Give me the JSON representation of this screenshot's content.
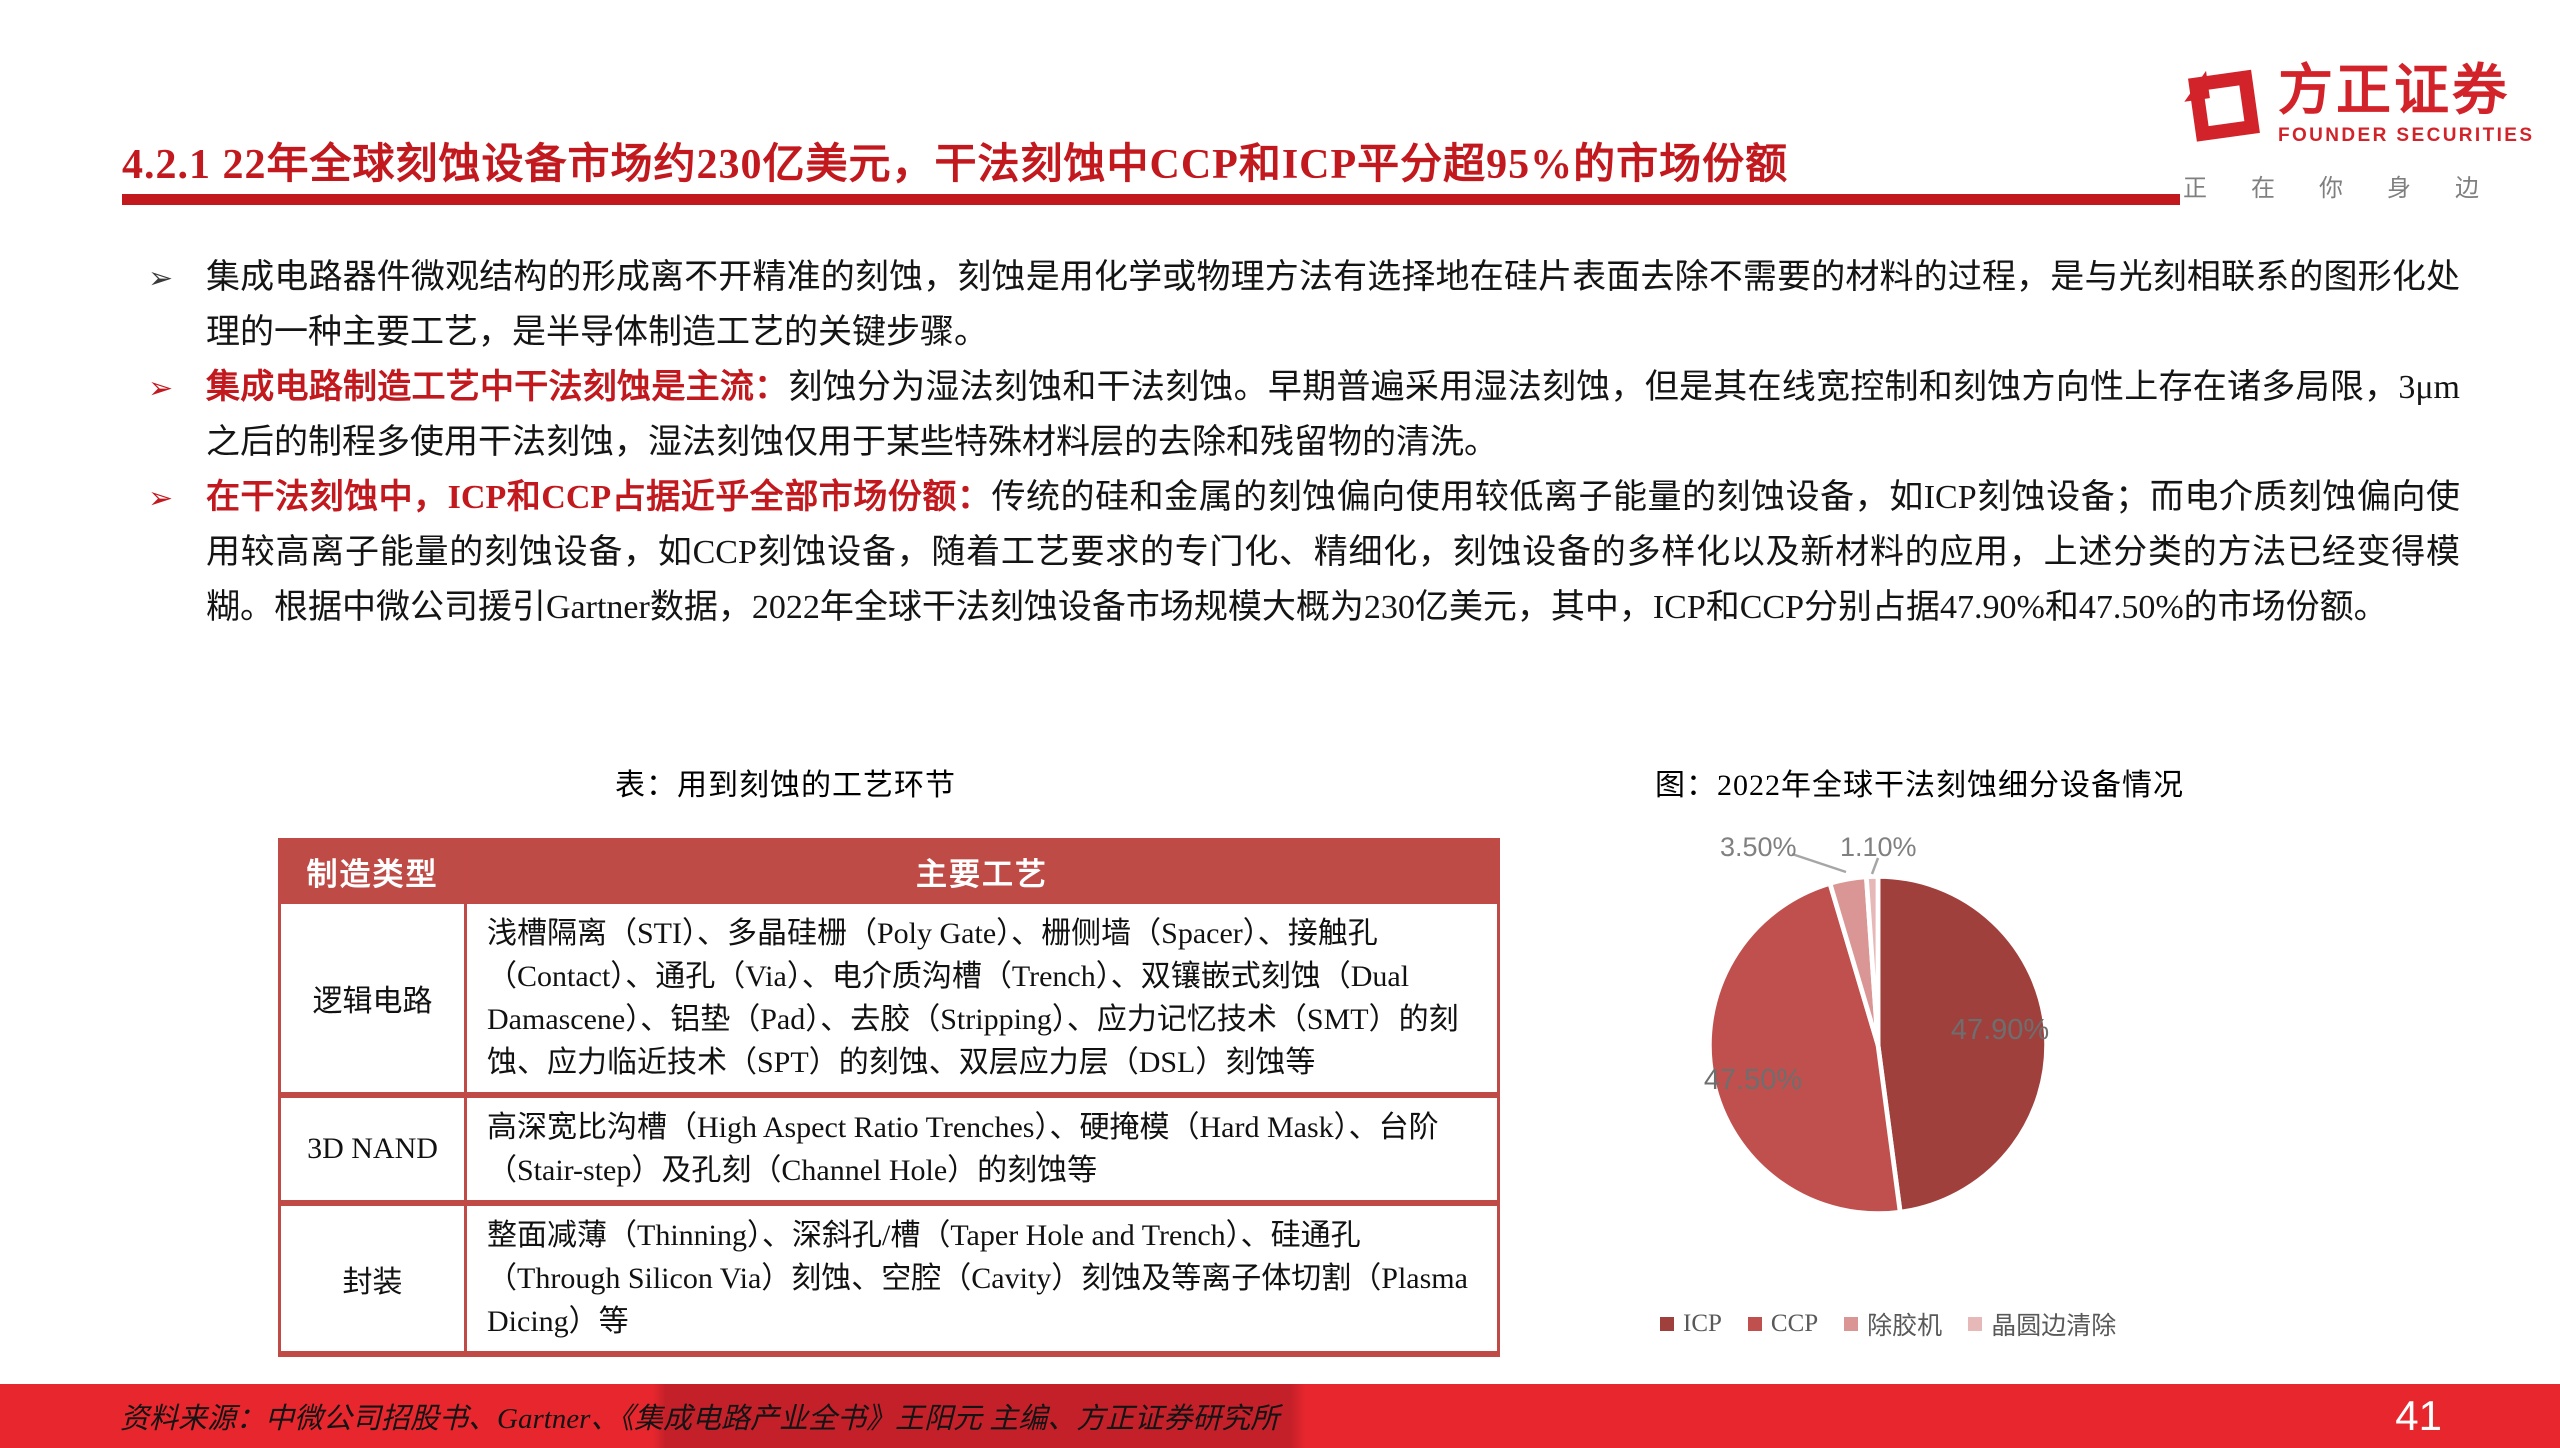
{
  "header": {
    "title": "4.2.1 22年全球刻蚀设备市场约230亿美元，干法刻蚀中CCP和ICP平分超95%的市场份额",
    "logo": {
      "name_cn": "方正证券",
      "name_en": "FOUNDER SECURITIES",
      "tagline": "正在你身边",
      "brand_red": "#d2232a"
    }
  },
  "bullets": [
    {
      "lead": "",
      "text": "集成电路器件微观结构的形成离不开精准的刻蚀，刻蚀是用化学或物理方法有选择地在硅片表面去除不需要的材料的过程，是与光刻相联系的图形化处理的一种主要工艺，是半导体制造工艺的关键步骤。"
    },
    {
      "lead": "集成电路制造工艺中干法刻蚀是主流：",
      "text": "刻蚀分为湿法刻蚀和干法刻蚀。早期普遍采用湿法刻蚀，但是其在线宽控制和刻蚀方向性上存在诸多局限，3μm之后的制程多使用干法刻蚀，湿法刻蚀仅用于某些特殊材料层的去除和残留物的清洗。"
    },
    {
      "lead": "在干法刻蚀中，ICP和CCP占据近乎全部市场份额：",
      "text": "传统的硅和金属的刻蚀偏向使用较低离子能量的刻蚀设备，如ICP刻蚀设备；而电介质刻蚀偏向使用较高离子能量的刻蚀设备，如CCP刻蚀设备，随着工艺要求的专门化、精细化，刻蚀设备的多样化以及新材料的应用，上述分类的方法已经变得模糊。根据中微公司援引Gartner数据，2022年全球干法刻蚀设备市场规模大概为230亿美元，其中，ICP和CCP分别占据47.90%和47.50%的市场份额。"
    }
  ],
  "table": {
    "caption": "表：用到刻蚀的工艺环节",
    "headers": [
      "制造类型",
      "主要工艺"
    ],
    "rows": [
      {
        "type": "逻辑电路",
        "detail": "浅槽隔离（STI）、多晶硅栅（Poly Gate）、栅侧墙（Spacer）、接触孔（Contact）、通孔（Via）、电介质沟槽（Trench）、双镶嵌式刻蚀（Dual Damascene）、铝垫（Pad）、去胶（Stripping）、应力记忆技术（SMT）的刻蚀、应力临近技术（SPT）的刻蚀、双层应力层（DSL）刻蚀等"
      },
      {
        "type": "3D NAND",
        "detail": "高深宽比沟槽（High Aspect Ratio Trenches）、硬掩模（Hard Mask）、台阶（Stair-step）及孔刻（Channel Hole）的刻蚀等"
      },
      {
        "type": "封装",
        "detail": "整面减薄（Thinning）、深斜孔/槽（Taper Hole and Trench）、硅通孔（Through Silicon Via）刻蚀、空腔（Cavity）刻蚀及等离子体切割（Plasma Dicing）等"
      }
    ]
  },
  "chart_data": {
    "type": "pie",
    "title": "图：2022年全球干法刻蚀细分设备情况",
    "unit": "%",
    "start_angle": "12-oclock, clockwise",
    "legend_position": "bottom",
    "slices": [
      {
        "name": "ICP",
        "value": 47.9,
        "label": "47.90%",
        "color": "#a0403d",
        "label_placement": "inside"
      },
      {
        "name": "CCP",
        "value": 47.5,
        "label": "47.50%",
        "color": "#c0504d",
        "label_placement": "inside"
      },
      {
        "name": "除胶机",
        "value": 3.5,
        "label": "3.50%",
        "color": "#d99694",
        "label_placement": "outside"
      },
      {
        "name": "晶圆边清除",
        "value": 1.1,
        "label": "1.10%",
        "color": "#e6b9b8",
        "label_placement": "outside"
      }
    ]
  },
  "footer": {
    "source": "资料来源：中微公司招股书、Gartner、《集成电路产业全书》王阳元 主编、方正证券研究所",
    "page_number": "41"
  }
}
